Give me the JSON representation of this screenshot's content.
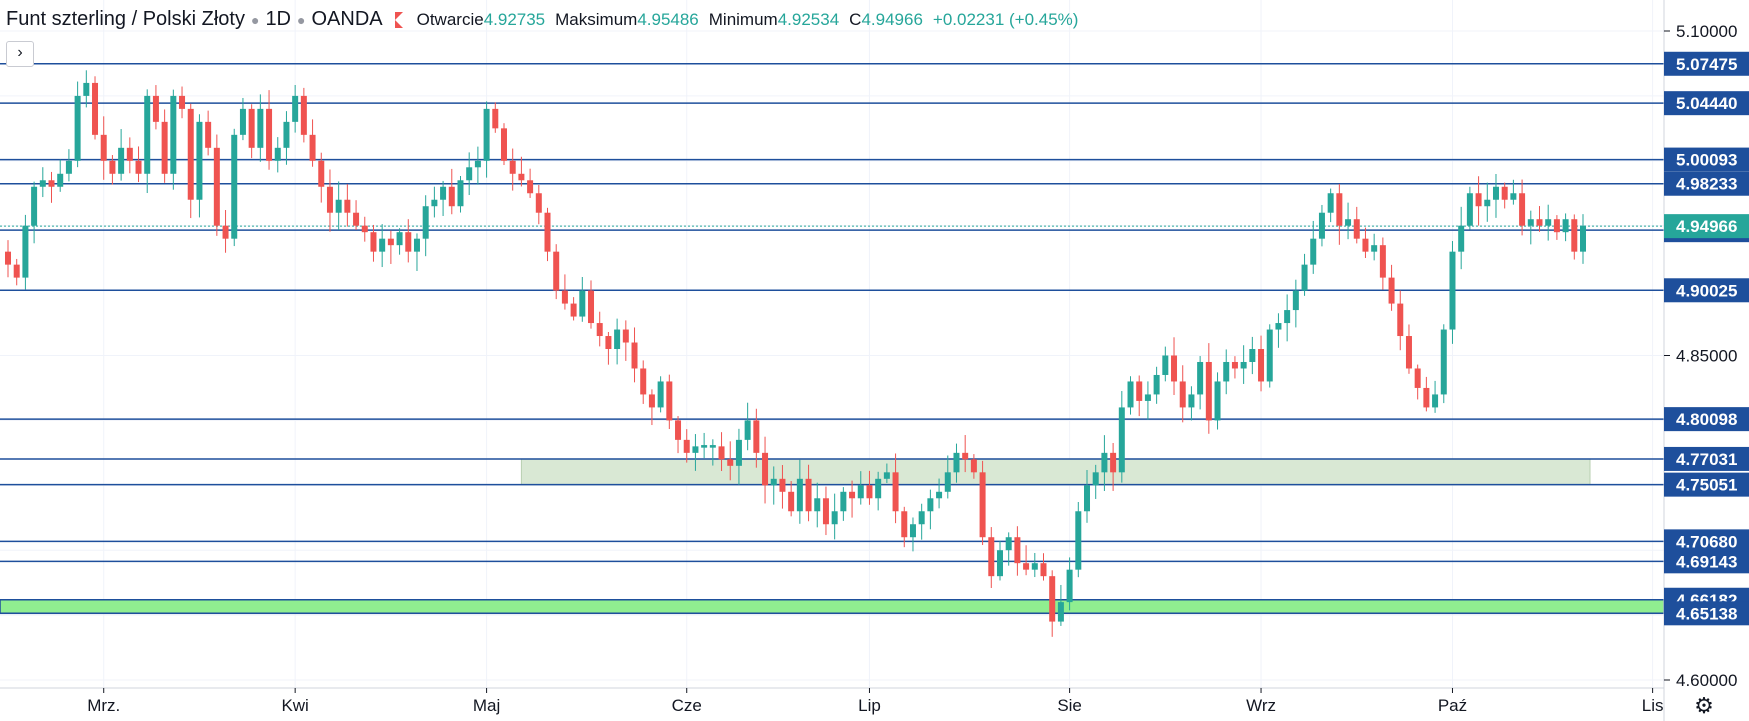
{
  "header": {
    "symbol": "Funt szterling / Polski Złoty",
    "interval": "1D",
    "source": "OANDA",
    "open_label": "Otwarcie",
    "open_value": "4.92735",
    "high_label": "Maksimum",
    "high_value": "4.95486",
    "low_label": "Minimum",
    "low_value": "4.92534",
    "close_label": "C",
    "close_value": "4.94966",
    "change": "+0.02231 (+0.45%)"
  },
  "controls": {
    "collapse_icon": "chevron-right-icon",
    "settings_icon": "gear-icon"
  },
  "colors": {
    "up": "#26a69a",
    "down": "#ef5350",
    "level_line": "#1e4f9c",
    "zone_fill": "#d9e8d4",
    "support_fill": "#90ee90",
    "current_price": "#26a69a"
  },
  "chart_data": {
    "type": "candlestick",
    "title": "Funt szterling / Polski Złoty · 1D · OANDA",
    "ylim": [
      4.585,
      5.12
    ],
    "y_ticks": [
      "5.10000",
      "4.85000",
      "4.60000"
    ],
    "x_tick_labels": [
      {
        "label": "Mrz.",
        "index": 11
      },
      {
        "label": "Kwi",
        "index": 33
      },
      {
        "label": "Maj",
        "index": 55
      },
      {
        "label": "Cze",
        "index": 78
      },
      {
        "label": "Lip",
        "index": 99
      },
      {
        "label": "Sie",
        "index": 122
      },
      {
        "label": "Wrz",
        "index": 144
      },
      {
        "label": "Paź",
        "index": 166
      },
      {
        "label": "Lis",
        "index": 189
      }
    ],
    "horizontal_levels": [
      "5.07475",
      "5.04440",
      "5.00093",
      "4.98233",
      "4.94656",
      "4.90025",
      "4.80098",
      "4.77031",
      "4.75051",
      "4.70680",
      "4.69143",
      "4.66182",
      "4.65138"
    ],
    "resistance_zone": {
      "from": 4.75051,
      "to": 4.77031,
      "start_index": 59
    },
    "support_zone": {
      "from": 4.65138,
      "to": 4.66182
    },
    "current_price": "4.94966",
    "closes": [
      4.92,
      4.91,
      4.95,
      4.98,
      4.985,
      4.98,
      4.99,
      5.0,
      5.05,
      5.06,
      5.02,
      5.0,
      4.99,
      5.01,
      5.0,
      4.99,
      5.05,
      5.03,
      4.99,
      5.05,
      5.04,
      4.97,
      5.03,
      5.01,
      4.95,
      4.94,
      5.02,
      5.04,
      5.01,
      5.04,
      5.0,
      5.01,
      5.03,
      5.05,
      5.02,
      5.0,
      4.98,
      4.96,
      4.97,
      4.96,
      4.95,
      4.945,
      4.93,
      4.94,
      4.935,
      4.945,
      4.93,
      4.94,
      4.965,
      4.97,
      4.98,
      4.965,
      4.985,
      4.995,
      5.0,
      5.04,
      5.025,
      5.0,
      4.99,
      4.985,
      4.975,
      4.96,
      4.93,
      4.9,
      4.89,
      4.88,
      4.9,
      4.875,
      4.865,
      4.855,
      4.87,
      4.86,
      4.84,
      4.82,
      4.81,
      4.83,
      4.8,
      4.785,
      4.775,
      4.78,
      4.78,
      4.78,
      4.77,
      4.765,
      4.785,
      4.8,
      4.775,
      4.75,
      4.755,
      4.745,
      4.73,
      4.755,
      4.73,
      4.74,
      4.72,
      4.73,
      4.745,
      4.74,
      4.75,
      4.74,
      4.755,
      4.76,
      4.73,
      4.71,
      4.72,
      4.73,
      4.74,
      4.745,
      4.76,
      4.775,
      4.77,
      4.76,
      4.71,
      4.68,
      4.7,
      4.71,
      4.69,
      4.685,
      4.69,
      4.68,
      4.645,
      4.66,
      4.685,
      4.73,
      4.75,
      4.76,
      4.775,
      4.76,
      4.81,
      4.83,
      4.815,
      4.82,
      4.835,
      4.85,
      4.83,
      4.81,
      4.82,
      4.845,
      4.8,
      4.83,
      4.845,
      4.84,
      4.845,
      4.855,
      4.83,
      4.87,
      4.875,
      4.885,
      4.9,
      4.92,
      4.94,
      4.96,
      4.975,
      4.95,
      4.955,
      4.94,
      4.93,
      4.935,
      4.91,
      4.89,
      4.865,
      4.84,
      4.825,
      4.81,
      4.82,
      4.87,
      4.93,
      4.95,
      4.975,
      4.965,
      4.97,
      4.98,
      4.97,
      4.975,
      4.95,
      4.955,
      4.95,
      4.955,
      4.945,
      4.955,
      4.93,
      4.95
    ]
  }
}
